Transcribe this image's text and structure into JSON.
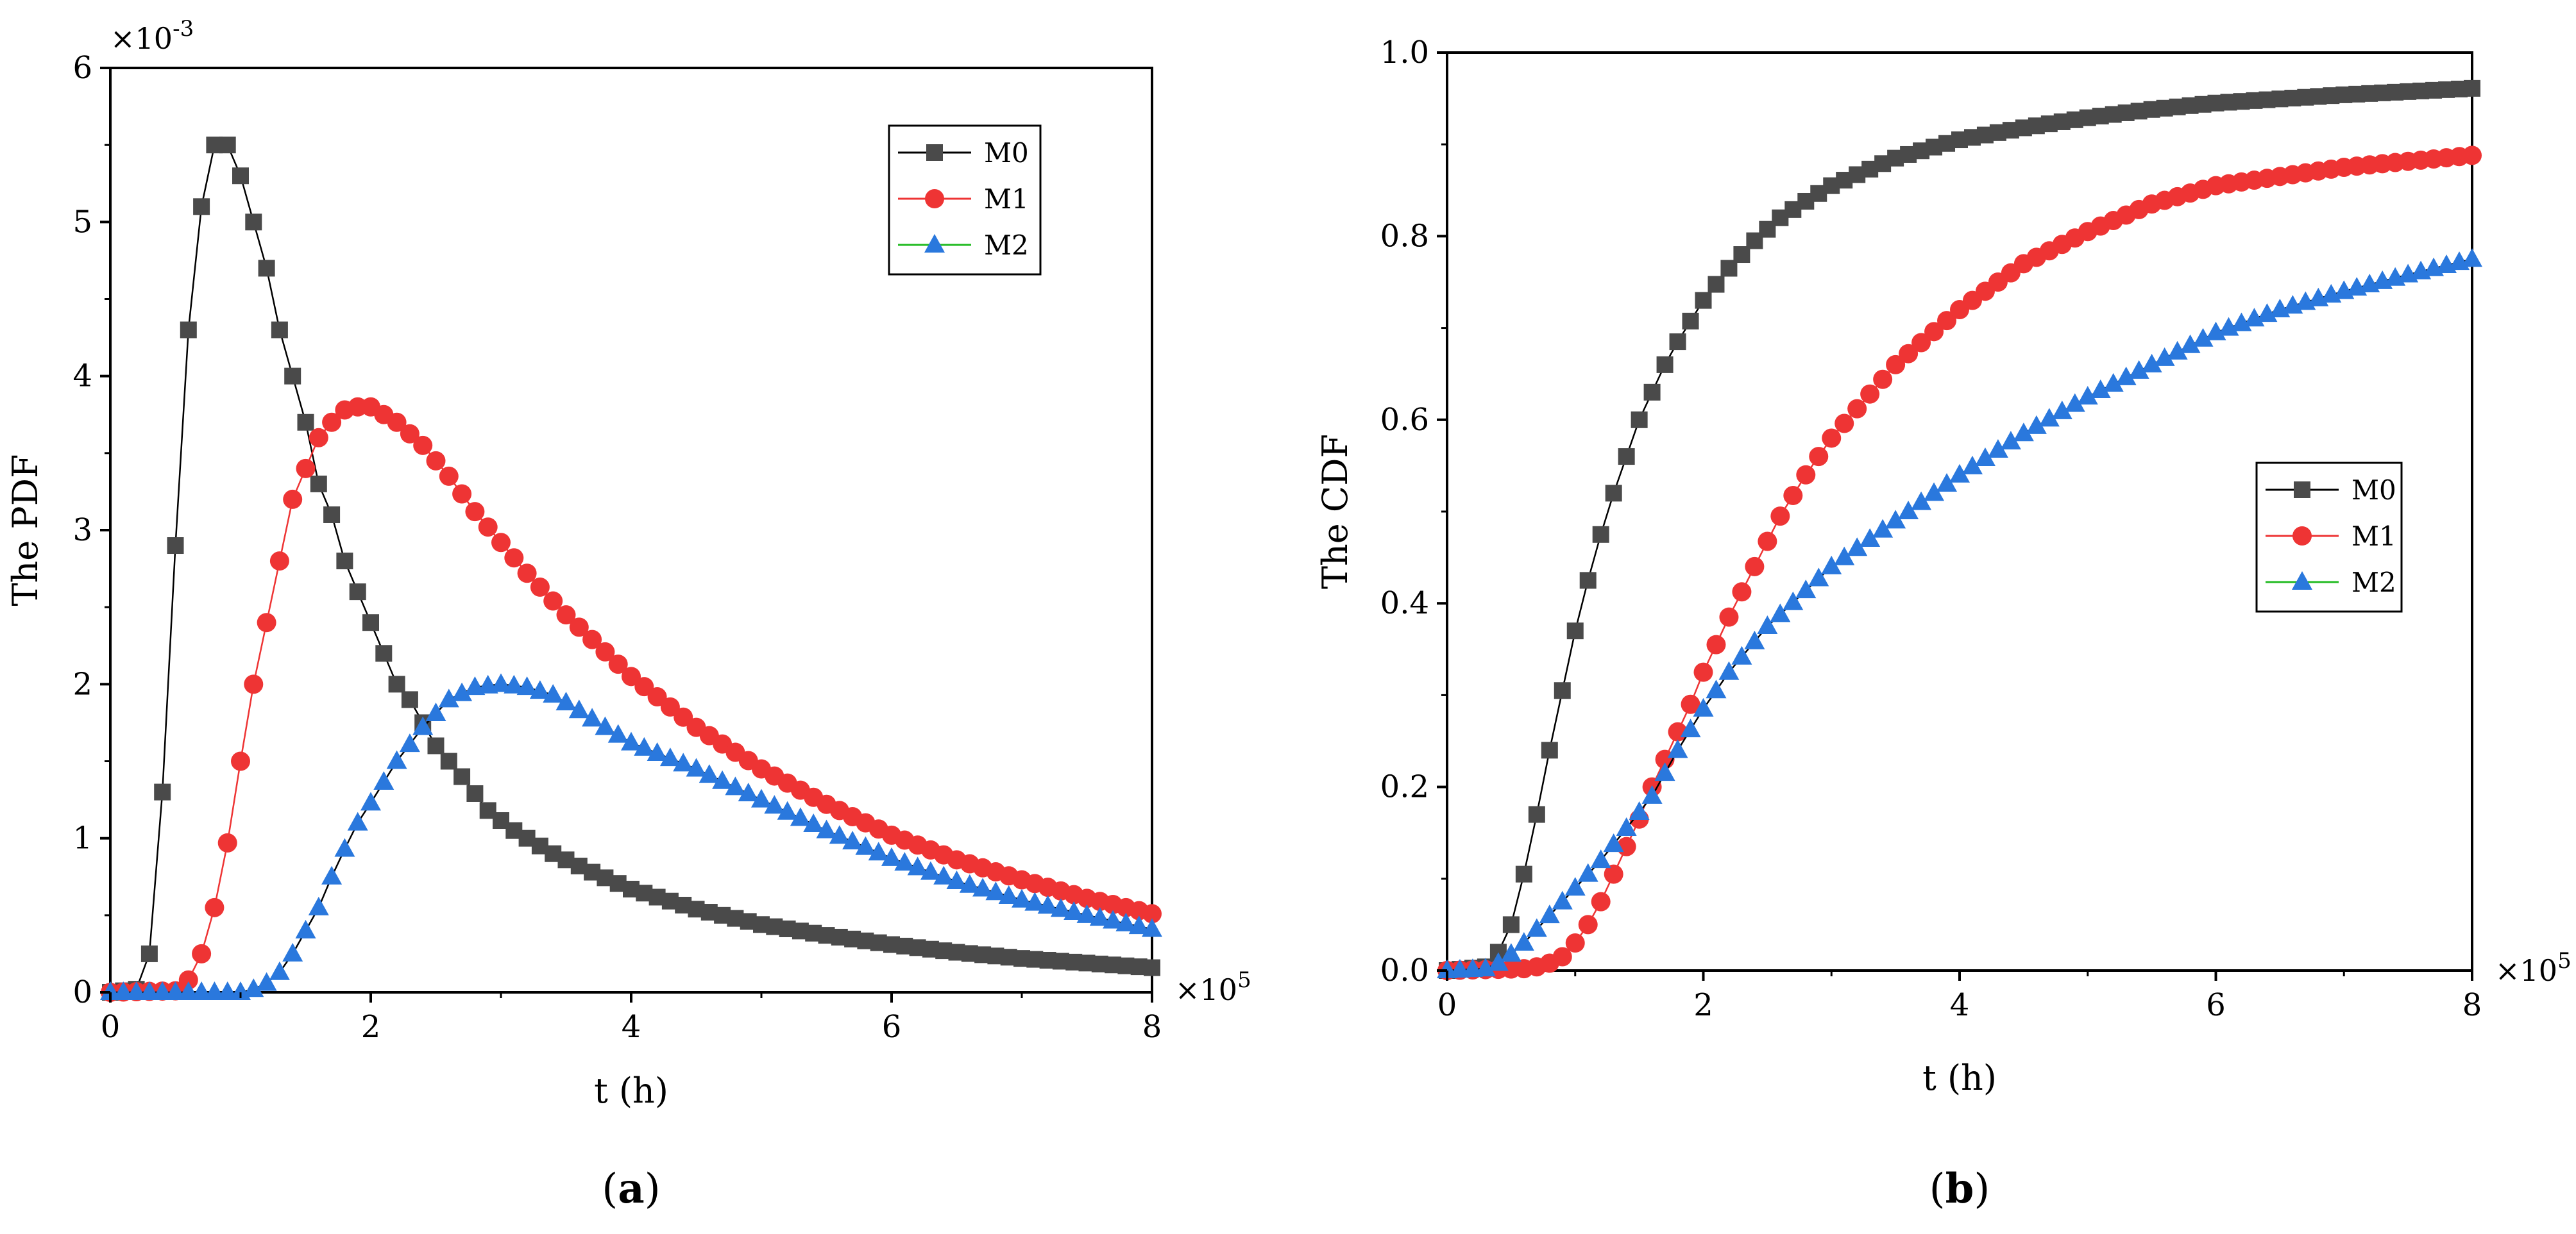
{
  "colors": {
    "M0": "#4a4a4a",
    "M1": "#ee3434",
    "M2": "#2a78dd",
    "M0_line": "#000000",
    "M1_line": "#ee3434",
    "M2_line": "#22bb22"
  },
  "chart_data": [
    {
      "panel": "a",
      "type": "line",
      "title": "",
      "panel_label": {
        "open": "(",
        "letter": "a",
        "close": ")"
      },
      "xlabel": "t (h)",
      "ylabel": "The  PDF",
      "x_multiplier": "×10",
      "x_multiplier_exp": "5",
      "y_multiplier": "×10",
      "y_multiplier_exp": "-3",
      "xlim": [
        0,
        8
      ],
      "ylim": [
        0,
        6
      ],
      "xticks": [
        0,
        2,
        4,
        6,
        8
      ],
      "yticks": [
        0,
        1,
        2,
        3,
        4,
        5,
        6
      ],
      "xtick_labels": [
        "0",
        "2",
        "4",
        "6",
        "8"
      ],
      "ytick_labels": [
        "0",
        "1",
        "2",
        "3",
        "4",
        "5",
        "6"
      ],
      "legend": {
        "position": "top-right",
        "entries": [
          "M0",
          "M1",
          "M2"
        ]
      },
      "marker_spacing": 0.1,
      "series": [
        {
          "name": "M0",
          "marker": "square",
          "points": [
            [
              0.0,
              0.0
            ],
            [
              0.2,
              0.02
            ],
            [
              0.3,
              0.25
            ],
            [
              0.4,
              1.3
            ],
            [
              0.5,
              2.9
            ],
            [
              0.6,
              4.3
            ],
            [
              0.7,
              5.1
            ],
            [
              0.8,
              5.5
            ],
            [
              0.9,
              5.5
            ],
            [
              1.0,
              5.3
            ],
            [
              1.1,
              5.0
            ],
            [
              1.2,
              4.7
            ],
            [
              1.3,
              4.3
            ],
            [
              1.4,
              4.0
            ],
            [
              1.5,
              3.7
            ],
            [
              1.6,
              3.3
            ],
            [
              1.7,
              3.1
            ],
            [
              1.8,
              2.8
            ],
            [
              1.9,
              2.6
            ],
            [
              2.0,
              2.4
            ],
            [
              2.1,
              2.2
            ],
            [
              2.2,
              2.0
            ],
            [
              2.3,
              1.9
            ],
            [
              2.5,
              1.6
            ],
            [
              2.7,
              1.4
            ],
            [
              2.9,
              1.18
            ],
            [
              3.1,
              1.05
            ],
            [
              3.4,
              0.9
            ],
            [
              3.7,
              0.78
            ],
            [
              4.0,
              0.67
            ],
            [
              4.5,
              0.54
            ],
            [
              5.0,
              0.44
            ],
            [
              5.5,
              0.37
            ],
            [
              6.0,
              0.31
            ],
            [
              6.5,
              0.26
            ],
            [
              7.0,
              0.22
            ],
            [
              7.5,
              0.19
            ],
            [
              8.0,
              0.16
            ]
          ]
        },
        {
          "name": "M1",
          "marker": "circle",
          "points": [
            [
              0.0,
              0.0
            ],
            [
              0.5,
              0.01
            ],
            [
              0.6,
              0.08
            ],
            [
              0.7,
              0.25
            ],
            [
              0.8,
              0.55
            ],
            [
              0.9,
              0.97
            ],
            [
              1.0,
              1.5
            ],
            [
              1.1,
              2.0
            ],
            [
              1.2,
              2.4
            ],
            [
              1.3,
              2.8
            ],
            [
              1.4,
              3.2
            ],
            [
              1.5,
              3.4
            ],
            [
              1.6,
              3.6
            ],
            [
              1.7,
              3.7
            ],
            [
              1.8,
              3.78
            ],
            [
              1.9,
              3.8
            ],
            [
              2.0,
              3.8
            ],
            [
              2.2,
              3.7
            ],
            [
              2.4,
              3.55
            ],
            [
              2.6,
              3.35
            ],
            [
              2.8,
              3.12
            ],
            [
              3.0,
              2.92
            ],
            [
              3.2,
              2.72
            ],
            [
              3.5,
              2.45
            ],
            [
              4.0,
              2.05
            ],
            [
              4.5,
              1.72
            ],
            [
              5.0,
              1.45
            ],
            [
              5.5,
              1.22
            ],
            [
              6.0,
              1.02
            ],
            [
              6.5,
              0.86
            ],
            [
              7.0,
              0.73
            ],
            [
              7.5,
              0.61
            ],
            [
              8.0,
              0.51
            ]
          ]
        },
        {
          "name": "M2",
          "marker": "triangle",
          "points": [
            [
              0.0,
              0.0
            ],
            [
              1.0,
              0.0
            ],
            [
              1.1,
              0.02
            ],
            [
              1.2,
              0.06
            ],
            [
              1.3,
              0.13
            ],
            [
              1.4,
              0.25
            ],
            [
              1.5,
              0.4
            ],
            [
              1.6,
              0.55
            ],
            [
              1.7,
              0.75
            ],
            [
              1.8,
              0.93
            ],
            [
              1.9,
              1.1
            ],
            [
              2.0,
              1.23
            ],
            [
              2.2,
              1.5
            ],
            [
              2.4,
              1.72
            ],
            [
              2.6,
              1.9
            ],
            [
              2.8,
              1.98
            ],
            [
              3.0,
              2.0
            ],
            [
              3.2,
              1.98
            ],
            [
              3.4,
              1.93
            ],
            [
              3.6,
              1.83
            ],
            [
              3.8,
              1.72
            ],
            [
              4.0,
              1.62
            ],
            [
              4.5,
              1.45
            ],
            [
              5.0,
              1.25
            ],
            [
              5.5,
              1.05
            ],
            [
              6.0,
              0.87
            ],
            [
              6.5,
              0.72
            ],
            [
              7.0,
              0.6
            ],
            [
              7.5,
              0.5
            ],
            [
              8.0,
              0.41
            ]
          ]
        }
      ]
    },
    {
      "panel": "b",
      "type": "line",
      "title": "",
      "panel_label": {
        "open": "(",
        "letter": "b",
        "close": ")"
      },
      "xlabel": "t (h)",
      "ylabel": "The  CDF",
      "x_multiplier": "×10",
      "x_multiplier_exp": "5",
      "y_multiplier": "",
      "y_multiplier_exp": "",
      "xlim": [
        0,
        8
      ],
      "ylim": [
        0,
        1.0
      ],
      "xticks": [
        0,
        2,
        4,
        6,
        8
      ],
      "yticks": [
        0,
        0.2,
        0.4,
        0.6,
        0.8,
        1.0
      ],
      "xtick_labels": [
        "0",
        "2",
        "4",
        "6",
        "8"
      ],
      "ytick_labels": [
        "0.0",
        "0.2",
        "0.4",
        "0.6",
        "0.8",
        "1.0"
      ],
      "legend": {
        "position": "center-right",
        "entries": [
          "M0",
          "M1",
          "M2"
        ]
      },
      "marker_spacing": 0.1,
      "series": [
        {
          "name": "M0",
          "marker": "square",
          "points": [
            [
              0.0,
              0.0
            ],
            [
              0.3,
              0.004
            ],
            [
              0.4,
              0.02
            ],
            [
              0.5,
              0.05
            ],
            [
              0.6,
              0.105
            ],
            [
              0.7,
              0.17
            ],
            [
              0.8,
              0.24
            ],
            [
              0.9,
              0.305
            ],
            [
              1.0,
              0.37
            ],
            [
              1.1,
              0.425
            ],
            [
              1.2,
              0.475
            ],
            [
              1.3,
              0.52
            ],
            [
              1.4,
              0.56
            ],
            [
              1.5,
              0.6
            ],
            [
              1.6,
              0.63
            ],
            [
              1.7,
              0.66
            ],
            [
              1.8,
              0.685
            ],
            [
              2.0,
              0.73
            ],
            [
              2.2,
              0.765
            ],
            [
              2.4,
              0.795
            ],
            [
              2.6,
              0.82
            ],
            [
              2.8,
              0.838
            ],
            [
              3.0,
              0.855
            ],
            [
              3.5,
              0.885
            ],
            [
              4.0,
              0.905
            ],
            [
              4.5,
              0.918
            ],
            [
              5.0,
              0.929
            ],
            [
              5.5,
              0.938
            ],
            [
              6.0,
              0.945
            ],
            [
              7.0,
              0.954
            ],
            [
              8.0,
              0.961
            ]
          ]
        },
        {
          "name": "M1",
          "marker": "circle",
          "points": [
            [
              0.0,
              0.0
            ],
            [
              0.6,
              0.002
            ],
            [
              0.7,
              0.004
            ],
            [
              0.8,
              0.008
            ],
            [
              0.9,
              0.015
            ],
            [
              1.0,
              0.03
            ],
            [
              1.1,
              0.05
            ],
            [
              1.2,
              0.075
            ],
            [
              1.3,
              0.105
            ],
            [
              1.4,
              0.135
            ],
            [
              1.5,
              0.165
            ],
            [
              1.6,
              0.2
            ],
            [
              1.7,
              0.23
            ],
            [
              1.8,
              0.26
            ],
            [
              1.9,
              0.29
            ],
            [
              2.0,
              0.325
            ],
            [
              2.2,
              0.385
            ],
            [
              2.4,
              0.44
            ],
            [
              2.6,
              0.495
            ],
            [
              2.8,
              0.54
            ],
            [
              3.0,
              0.58
            ],
            [
              3.5,
              0.66
            ],
            [
              4.0,
              0.72
            ],
            [
              4.5,
              0.77
            ],
            [
              5.0,
              0.805
            ],
            [
              5.5,
              0.835
            ],
            [
              6.0,
              0.855
            ],
            [
              7.0,
              0.875
            ],
            [
              8.0,
              0.888
            ]
          ]
        },
        {
          "name": "M2",
          "marker": "triangle",
          "points": [
            [
              0.0,
              0.0
            ],
            [
              0.3,
              0.002
            ],
            [
              0.4,
              0.008
            ],
            [
              0.5,
              0.018
            ],
            [
              0.6,
              0.03
            ],
            [
              0.7,
              0.045
            ],
            [
              0.8,
              0.06
            ],
            [
              0.9,
              0.075
            ],
            [
              1.0,
              0.09
            ],
            [
              1.2,
              0.12
            ],
            [
              1.4,
              0.155
            ],
            [
              1.6,
              0.19
            ],
            [
              1.8,
              0.24
            ],
            [
              2.0,
              0.285
            ],
            [
              2.2,
              0.325
            ],
            [
              2.5,
              0.375
            ],
            [
              3.0,
              0.44
            ],
            [
              3.5,
              0.49
            ],
            [
              4.0,
              0.54
            ],
            [
              4.5,
              0.585
            ],
            [
              5.0,
              0.625
            ],
            [
              5.5,
              0.66
            ],
            [
              6.0,
              0.695
            ],
            [
              6.5,
              0.72
            ],
            [
              7.0,
              0.74
            ],
            [
              7.5,
              0.758
            ],
            [
              8.0,
              0.775
            ]
          ]
        }
      ]
    }
  ]
}
